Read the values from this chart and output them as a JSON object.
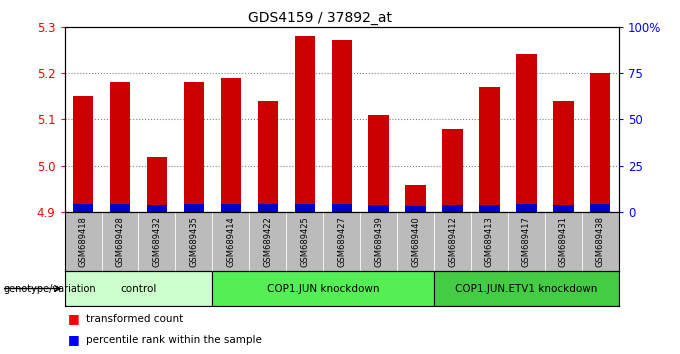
{
  "title": "GDS4159 / 37892_at",
  "samples": [
    "GSM689418",
    "GSM689428",
    "GSM689432",
    "GSM689435",
    "GSM689414",
    "GSM689422",
    "GSM689425",
    "GSM689427",
    "GSM689439",
    "GSM689440",
    "GSM689412",
    "GSM689413",
    "GSM689417",
    "GSM689431",
    "GSM689438"
  ],
  "red_values": [
    5.15,
    5.18,
    5.02,
    5.18,
    5.19,
    5.14,
    5.28,
    5.27,
    5.11,
    4.96,
    5.08,
    5.17,
    5.24,
    5.14,
    5.2
  ],
  "blue_values": [
    0.018,
    0.018,
    0.016,
    0.018,
    0.018,
    0.018,
    0.018,
    0.018,
    0.016,
    0.014,
    0.017,
    0.017,
    0.018,
    0.017,
    0.018
  ],
  "ymin": 4.9,
  "ymax": 5.3,
  "yticks": [
    4.9,
    5.0,
    5.1,
    5.2,
    5.3
  ],
  "right_yticks": [
    0,
    25,
    50,
    75,
    100
  ],
  "right_ytick_labels": [
    "0",
    "25",
    "50",
    "75",
    "100%"
  ],
  "groups": [
    {
      "label": "control",
      "start": 0,
      "end": 4,
      "color": "#ccffcc"
    },
    {
      "label": "COP1.JUN knockdown",
      "start": 4,
      "end": 10,
      "color": "#55ee55"
    },
    {
      "label": "COP1.JUN.ETV1 knockdown",
      "start": 10,
      "end": 15,
      "color": "#44cc44"
    }
  ],
  "bar_color": "#cc0000",
  "blue_color": "#0000cc",
  "base": 4.9,
  "sample_bg_color": "#bbbbbb"
}
